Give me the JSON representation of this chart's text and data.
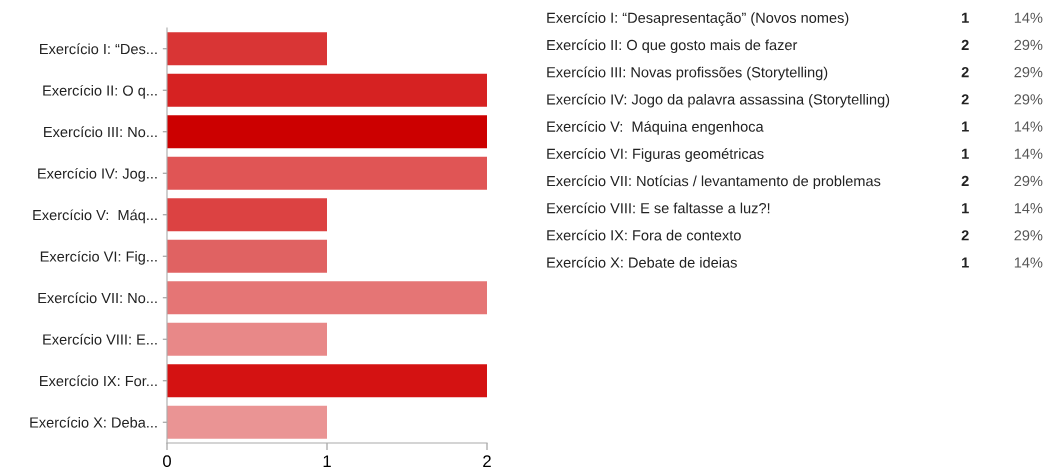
{
  "chart_data": [
    {
      "type": "bar",
      "orientation": "horizontal",
      "categories": [
        "Exercício I: “Des...",
        "Exercício II: O q...",
        "Exercício III: No...",
        "Exercício IV: Jog...",
        "Exercício V:  Máq...",
        "Exercício VI: Fig...",
        "Exercício VII: No...",
        "Exercício VIII: E...",
        "Exercício IX: For...",
        "Exercício X: Deba..."
      ],
      "values": [
        1,
        2,
        2,
        2,
        1,
        1,
        2,
        1,
        2,
        1
      ],
      "colors": [
        "#d93535",
        "#d62222",
        "#cc0000",
        "#e05555",
        "#dc4242",
        "#e06262",
        "#e57575",
        "#e88888",
        "#d41212",
        "#ea9494"
      ],
      "xlim": [
        0,
        2
      ],
      "xticks": [
        0,
        1,
        2
      ],
      "grid": false,
      "legend": false
    },
    {
      "type": "other",
      "categories": [
        "Exercício I: “Desapresentação” (Novos nomes)",
        "Exercício II: O que gosto mais de fazer",
        "Exercício III: Novas profissões (Storytelling)",
        "Exercício IV: Jogo da palavra assassina (Storytelling)",
        "Exercício V:  Máquina engenhoca",
        "Exercício VI: Figuras geométricas",
        "Exercício VII: Notícias / levantamento de problemas",
        "Exercício VIII: E se faltasse a luz?!",
        "Exercício IX: Fora de contexto",
        "Exercício X: Debate de ideias"
      ],
      "values": [
        1,
        2,
        2,
        2,
        1,
        1,
        2,
        1,
        2,
        1
      ],
      "data_labels": true,
      "annotations": [
        "14%",
        "29%",
        "29%",
        "29%",
        "14%",
        "14%",
        "29%",
        "14%",
        "29%",
        "14%"
      ]
    }
  ]
}
